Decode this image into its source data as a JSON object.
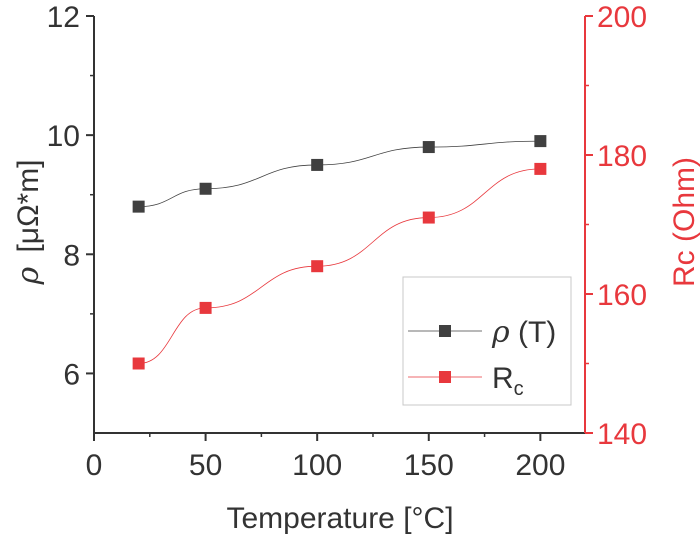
{
  "chart_data": {
    "type": "line",
    "xlabel": "Temperature [°C]",
    "ylabel_left": {
      "symbol": "ρ",
      "unit": "[μΩ*m]"
    },
    "ylabel_right": "Rc (Ohm)",
    "xlim": [
      0,
      220
    ],
    "ylim_left": [
      5,
      12
    ],
    "ylim_right": [
      140,
      200
    ],
    "x_ticks": [
      0,
      50,
      100,
      150,
      200
    ],
    "y_left_ticks": [
      6,
      8,
      10,
      12
    ],
    "y_right_ticks": [
      140,
      160,
      180,
      200
    ],
    "colors": {
      "rho": "#404040",
      "rc": "#e8383d",
      "axis": "#333333"
    },
    "series": [
      {
        "key": "rho",
        "axis": "left",
        "x": [
          20,
          50,
          100,
          150,
          200
        ],
        "values": [
          8.8,
          9.1,
          9.5,
          9.8,
          9.9
        ]
      },
      {
        "key": "rc",
        "axis": "right",
        "x": [
          20,
          50,
          100,
          150,
          200
        ],
        "values": [
          150,
          158,
          164,
          171,
          178
        ]
      }
    ],
    "legend": {
      "position": "bottom-right",
      "entries": [
        {
          "key": "rho",
          "symbol": "ρ",
          "text": " (T)"
        },
        {
          "key": "rc",
          "main": "R",
          "sub": "c"
        }
      ]
    },
    "grid": false
  }
}
